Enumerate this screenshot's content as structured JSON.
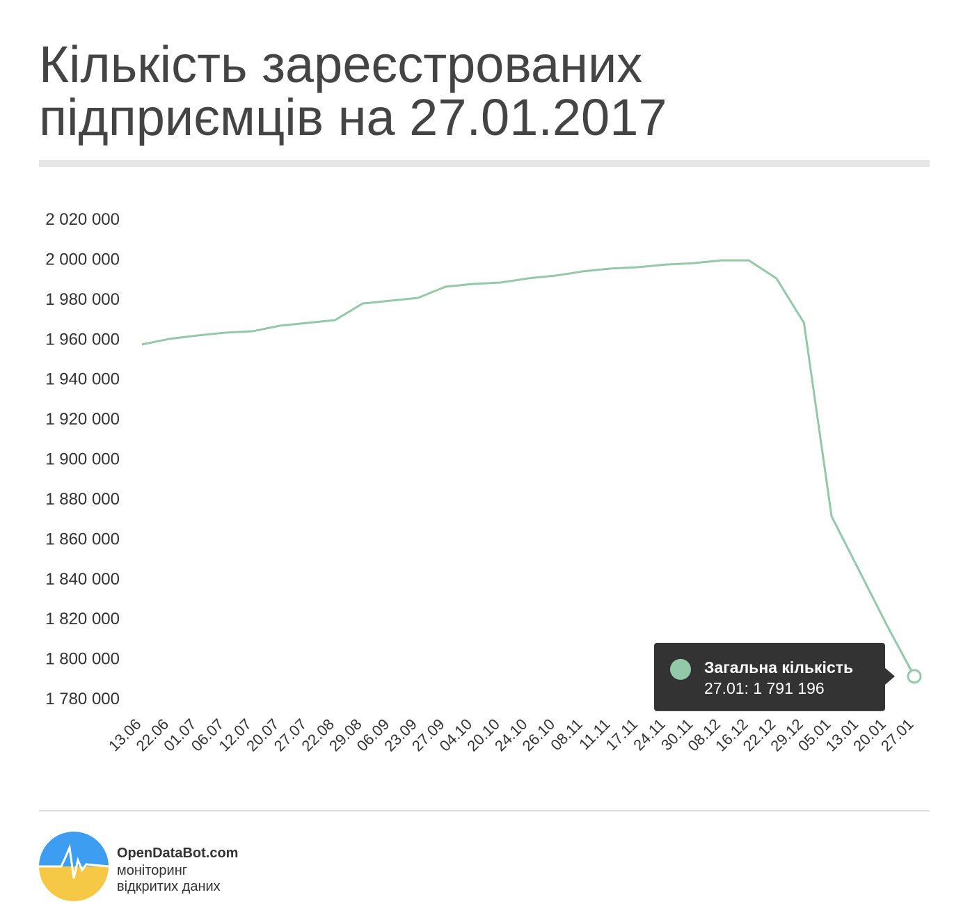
{
  "chart_data": {
    "type": "line",
    "title_lines": [
      "Кількість зареєстрованих",
      "підприємців на 27.01.2017"
    ],
    "categories": [
      "13.06",
      "22.06",
      "01.07",
      "06.07",
      "12.07",
      "20.07",
      "27.07",
      "22.08",
      "29.08",
      "06.09",
      "23.09",
      "27.09",
      "04.10",
      "20.10",
      "24.10",
      "26.10",
      "08.11",
      "11.11",
      "17.11",
      "24.11",
      "30.11",
      "08.12",
      "16.12",
      "22.12",
      "29.12",
      "05.01",
      "13.01",
      "20.01",
      "27.01"
    ],
    "series": [
      {
        "name": "Загальна кількість",
        "color": "#93c9a9",
        "values": [
          1957300,
          1960100,
          1961800,
          1963200,
          1963900,
          1966700,
          1968100,
          1969500,
          1977800,
          1979200,
          1980600,
          1986200,
          1987600,
          1988300,
          1990400,
          1991800,
          1993900,
          1995300,
          1996000,
          1997300,
          1998000,
          1999400,
          1999400,
          1990400,
          1968100,
          1871300,
          1844100,
          1816900,
          1791196
        ],
        "value_labels": [
          null,
          null,
          null,
          null,
          null,
          null,
          null,
          null,
          null,
          null,
          null,
          null,
          null,
          null,
          null,
          null,
          null,
          null,
          null,
          null,
          null,
          null,
          null,
          null,
          null,
          null,
          null,
          null,
          "27.01: 1 791 196"
        ]
      }
    ],
    "ylim": [
      1780000,
      2020000
    ],
    "yticks": [
      {
        "value": 1780000,
        "label": "1 780 000"
      },
      {
        "value": 1800000,
        "label": "1 800 000"
      },
      {
        "value": 1820000,
        "label": "1 820 000"
      },
      {
        "value": 1840000,
        "label": "1 840 000"
      },
      {
        "value": 1860000,
        "label": "1 860 000"
      },
      {
        "value": 1880000,
        "label": "1 880 000"
      },
      {
        "value": 1900000,
        "label": "1 900 000"
      },
      {
        "value": 1920000,
        "label": "1 920 000"
      },
      {
        "value": 1940000,
        "label": "1 940 000"
      },
      {
        "value": 1960000,
        "label": "1 960 000"
      },
      {
        "value": 1980000,
        "label": "1 980 000"
      },
      {
        "value": 2000000,
        "label": "2 000 000"
      },
      {
        "value": 2020000,
        "label": "2 020 000"
      }
    ],
    "grid": false
  },
  "footer": {
    "brand": "OpenDataBot.com",
    "tagline_lines": [
      "моніторинг",
      "відкритих даних"
    ]
  }
}
